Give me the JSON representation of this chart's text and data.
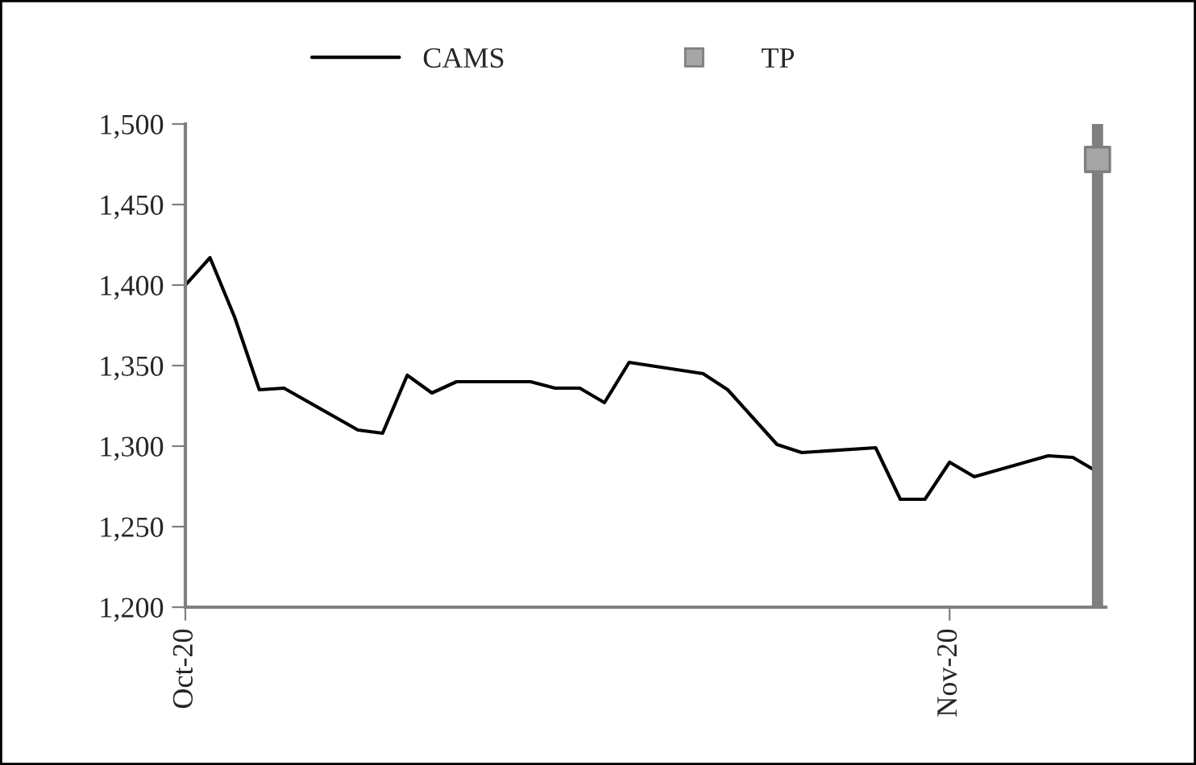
{
  "chart_data": {
    "type": "line",
    "x": [
      "2020-10-01",
      "2020-10-02",
      "2020-10-03",
      "2020-10-04",
      "2020-10-05",
      "2020-10-08",
      "2020-10-09",
      "2020-10-10",
      "2020-10-11",
      "2020-10-12",
      "2020-10-15",
      "2020-10-16",
      "2020-10-17",
      "2020-10-18",
      "2020-10-19",
      "2020-10-22",
      "2020-10-23",
      "2020-10-24",
      "2020-10-25",
      "2020-10-26",
      "2020-10-29",
      "2020-10-30",
      "2020-10-31",
      "2020-11-01",
      "2020-11-02",
      "2020-11-05",
      "2020-11-06",
      "2020-11-07"
    ],
    "series": [
      {
        "name": "CAMS",
        "color": "#000000",
        "marker": "none",
        "values": [
          1400,
          1417,
          1380,
          1335,
          1336,
          1310,
          1308,
          1344,
          1333,
          1340,
          1340,
          1336,
          1336,
          1327,
          1352,
          1345,
          1335,
          1318,
          1301,
          1296,
          1299,
          1267,
          1267,
          1290,
          1281,
          1294,
          1293,
          1284
        ]
      },
      {
        "name": "TP",
        "color": "#a6a6a6",
        "type": "scatter",
        "marker": "square",
        "x": [
          "2020-11-07"
        ],
        "values": [
          1478
        ]
      }
    ],
    "ref_lines": [
      {
        "axis": "x",
        "value": "2020-11-07",
        "color": "#7f7f7f"
      }
    ],
    "xlim": [
      "2020-10-01",
      "2020-11-07T08:00"
    ],
    "xticks": [
      {
        "value": "2020-10-01",
        "label": "Oct-20"
      },
      {
        "value": "2020-11-01",
        "label": "Nov-20"
      }
    ],
    "ylim": [
      1200,
      1500
    ],
    "yticks": [
      {
        "value": 1200,
        "label": "1,200"
      },
      {
        "value": 1250,
        "label": "1,250"
      },
      {
        "value": 1300,
        "label": "1,300"
      },
      {
        "value": 1350,
        "label": "1,350"
      },
      {
        "value": 1400,
        "label": "1,400"
      },
      {
        "value": 1450,
        "label": "1,450"
      },
      {
        "value": 1500,
        "label": "1,500"
      }
    ],
    "grid": false,
    "legend": "top"
  }
}
